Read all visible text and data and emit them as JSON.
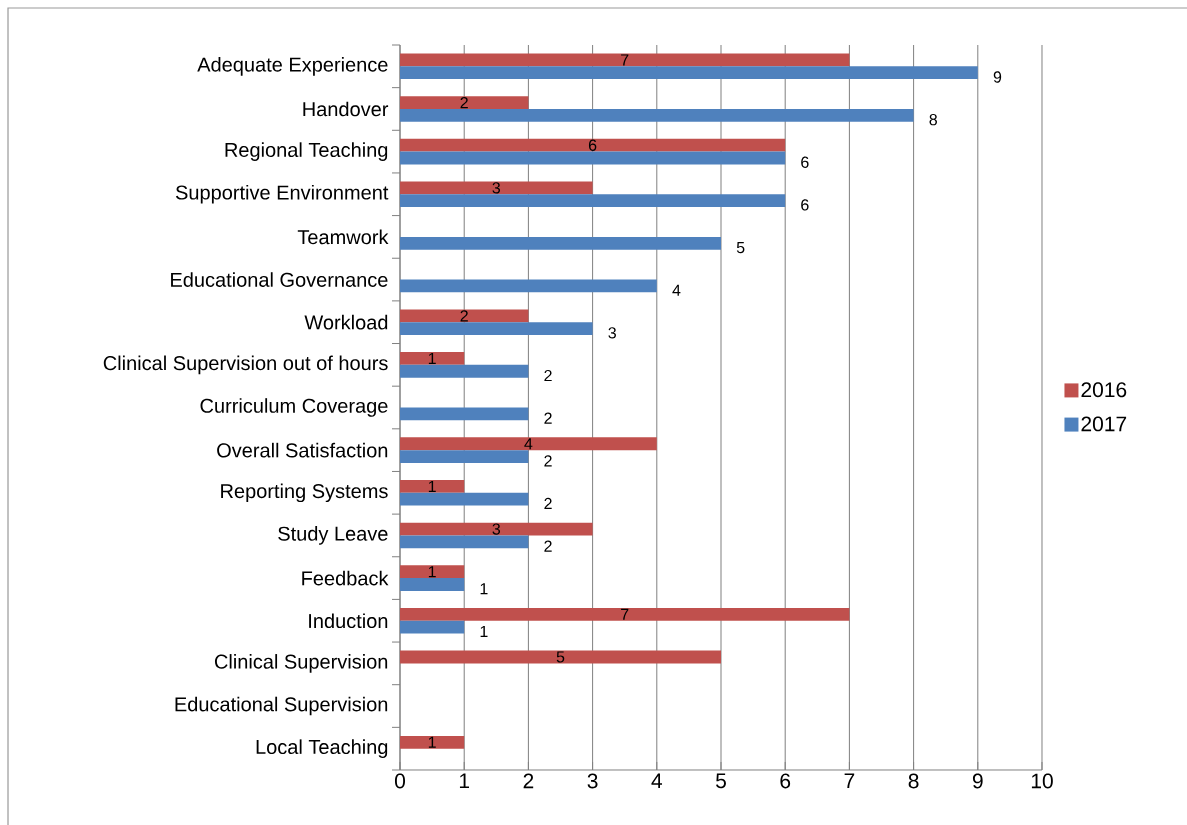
{
  "chart_data": {
    "type": "bar",
    "orientation": "horizontal",
    "categories": [
      "Adequate Experience",
      "Handover",
      "Regional Teaching",
      "Supportive Environment",
      "Teamwork",
      "Educational Governance",
      "Workload",
      "Clinical Supervision out of hours",
      "Curriculum Coverage",
      "Overall Satisfaction",
      "Reporting Systems",
      "Study Leave",
      "Feedback",
      "Induction",
      "Clinical Supervision",
      "Educational Supervision",
      "Local Teaching"
    ],
    "series": [
      {
        "name": "2016",
        "color": "#c0504d",
        "values": [
          7,
          2,
          6,
          3,
          0,
          0,
          2,
          1,
          0,
          4,
          1,
          3,
          1,
          7,
          5,
          0,
          1
        ],
        "value_labels": [
          "7",
          "2",
          "6",
          "3",
          null,
          null,
          "2",
          "1",
          null,
          "4",
          "1",
          "3",
          "1",
          "7",
          "5",
          null,
          "1"
        ]
      },
      {
        "name": "2017",
        "color": "#4f81bd",
        "values": [
          9,
          8,
          6,
          6,
          5,
          4,
          3,
          2,
          2,
          2,
          2,
          2,
          1,
          1,
          0,
          0,
          0
        ],
        "value_labels": [
          "9",
          "8",
          "6",
          "6",
          "5",
          "4",
          "3",
          "2",
          "2",
          "2",
          "2",
          "2",
          "1",
          "1",
          null,
          null,
          null
        ]
      }
    ],
    "xlim": [
      0,
      10
    ],
    "xticks": [
      0,
      1,
      2,
      3,
      4,
      5,
      6,
      7,
      8,
      9,
      10
    ],
    "grid": "x",
    "legend": "right"
  }
}
